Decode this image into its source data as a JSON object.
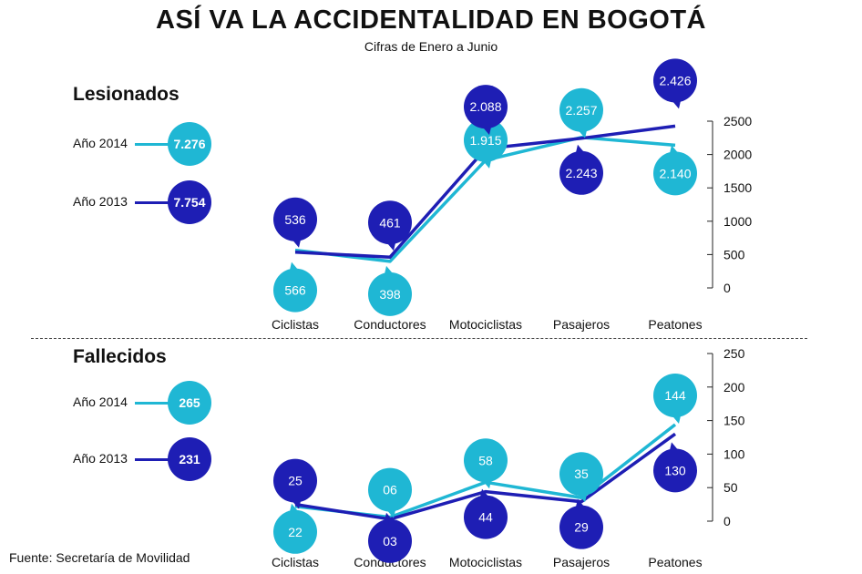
{
  "title": "ASÍ VA LA ACCIDENTALIDAD EN BOGOTÁ",
  "subtitle": "Cifras de Enero a Junio",
  "source": "Fuente: Secretaría de Movilidad",
  "colors": {
    "y2014": "#1fb7d4",
    "y2013": "#1e1eb4"
  },
  "lesionados": {
    "title": "Lesionados",
    "legend": [
      {
        "label": "Año 2014",
        "total": "7.276"
      },
      {
        "label": "Año 2013",
        "total": "7.754"
      }
    ]
  },
  "fallecidos": {
    "title": "Fallecidos",
    "legend": [
      {
        "label": "Año 2014",
        "total": "265"
      },
      {
        "label": "Año 2013",
        "total": "231"
      }
    ]
  },
  "chart_data": [
    {
      "type": "line",
      "title": "Lesionados",
      "categories": [
        "Ciclistas",
        "Conductores",
        "Motociclistas",
        "Pasajeros",
        "Peatones"
      ],
      "series": [
        {
          "name": "Año 2014",
          "values": [
            566,
            398,
            1915,
            2257,
            2140
          ],
          "labels": [
            "566",
            "398",
            "1.915",
            "2.257",
            "2.140"
          ]
        },
        {
          "name": "Año 2013",
          "values": [
            536,
            461,
            2088,
            2243,
            2426
          ],
          "labels": [
            "536",
            "461",
            "2.088",
            "2.243",
            "2.426"
          ]
        }
      ],
      "ylim": [
        0,
        2500
      ],
      "yticks": [
        0,
        500,
        1000,
        1500,
        2000,
        2500
      ],
      "grid": false
    },
    {
      "type": "line",
      "title": "Fallecidos",
      "categories": [
        "Ciclistas",
        "Conductores",
        "Motociclistas",
        "Pasajeros",
        "Peatones"
      ],
      "series": [
        {
          "name": "Año 2014",
          "values": [
            22,
            6,
            58,
            35,
            144
          ],
          "labels": [
            "22",
            "06",
            "58",
            "35",
            "144"
          ]
        },
        {
          "name": "Año 2013",
          "values": [
            25,
            3,
            44,
            29,
            130
          ],
          "labels": [
            "25",
            "03",
            "44",
            "29",
            "130"
          ]
        }
      ],
      "ylim": [
        0,
        250
      ],
      "yticks": [
        0,
        50,
        100,
        150,
        200,
        250
      ],
      "grid": false
    }
  ]
}
